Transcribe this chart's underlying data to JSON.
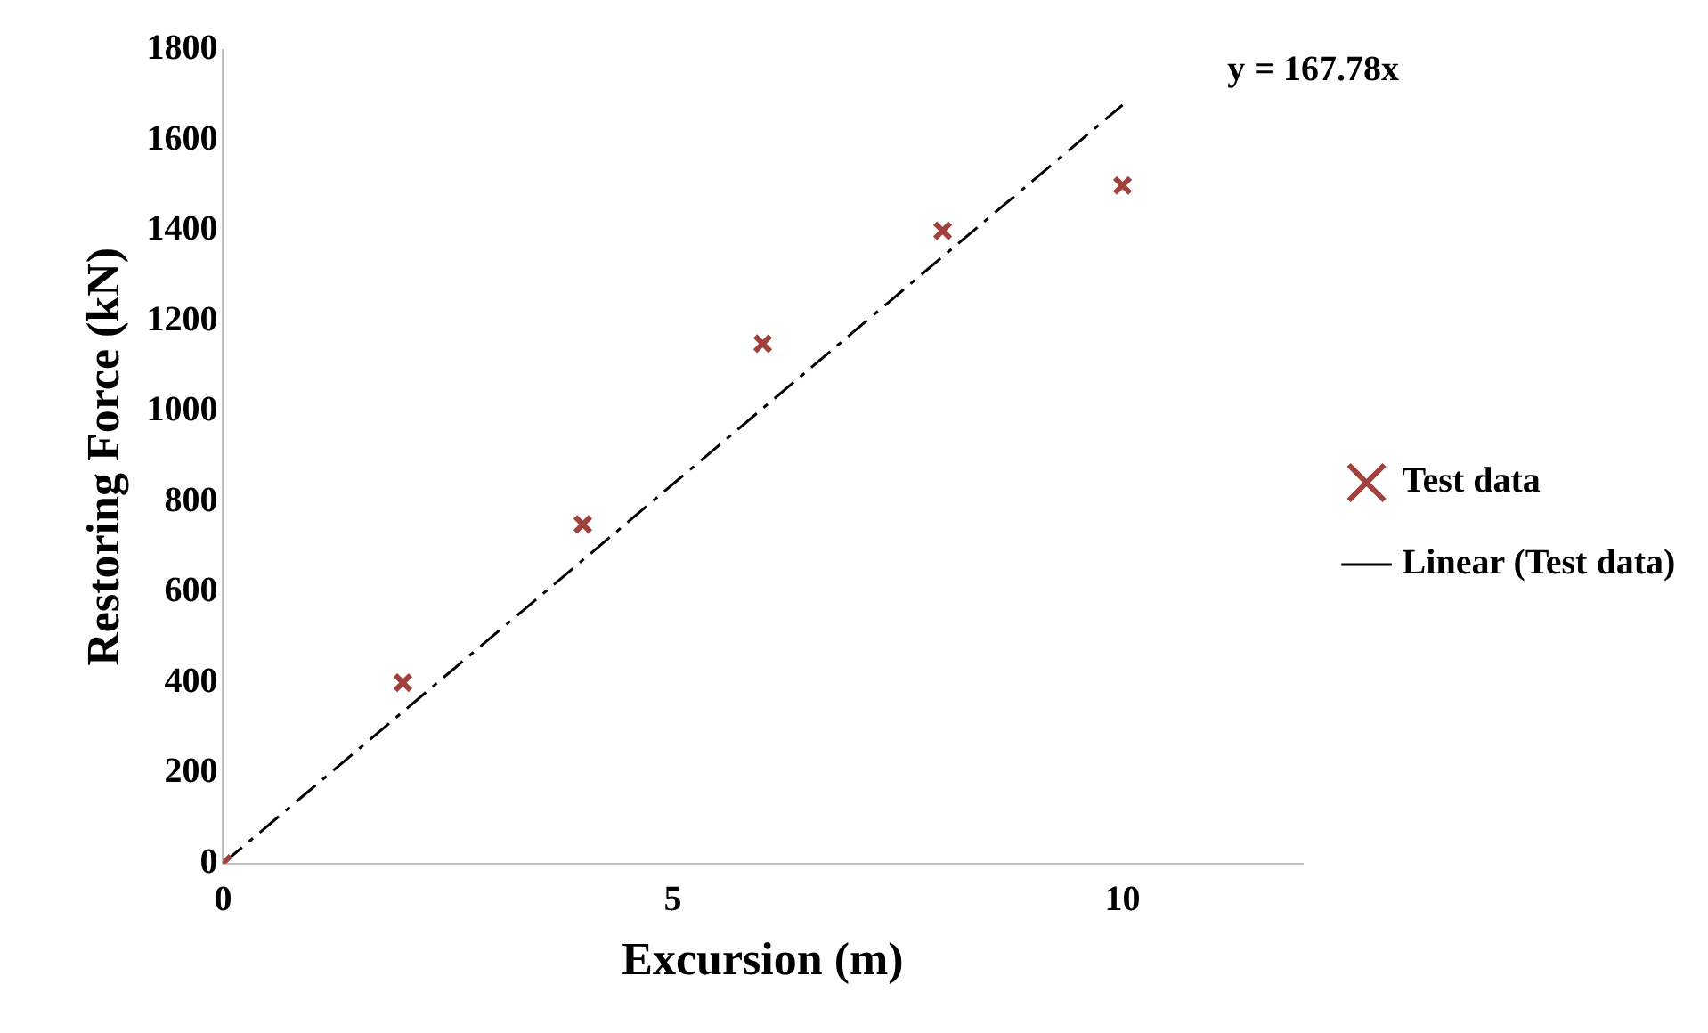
{
  "chart_data": {
    "type": "scatter",
    "xlabel": "Excursion (m)",
    "ylabel": "Restoring Force (kN)",
    "series": [
      {
        "name": "Test data",
        "type": "scatter",
        "color": "#a0413e",
        "marker": "cross",
        "x": [
          0,
          2,
          4,
          6,
          8,
          10
        ],
        "values": [
          0,
          400,
          750,
          1150,
          1400,
          1500
        ]
      },
      {
        "name": "Linear (Test data)",
        "type": "line",
        "color": "#000000",
        "marker": "none",
        "line_style": "dashed",
        "x": [
          0,
          10
        ],
        "values": [
          0,
          1678
        ]
      }
    ],
    "xlim": [
      0,
      12
    ],
    "xticks": [
      0,
      5,
      10
    ],
    "ylim": [
      0,
      1800
    ],
    "yticks": [
      0,
      200,
      400,
      600,
      800,
      1000,
      1200,
      1400,
      1600,
      1800
    ],
    "grid": false,
    "legend": "right",
    "annotations": [
      "y = 167.78x"
    ]
  }
}
